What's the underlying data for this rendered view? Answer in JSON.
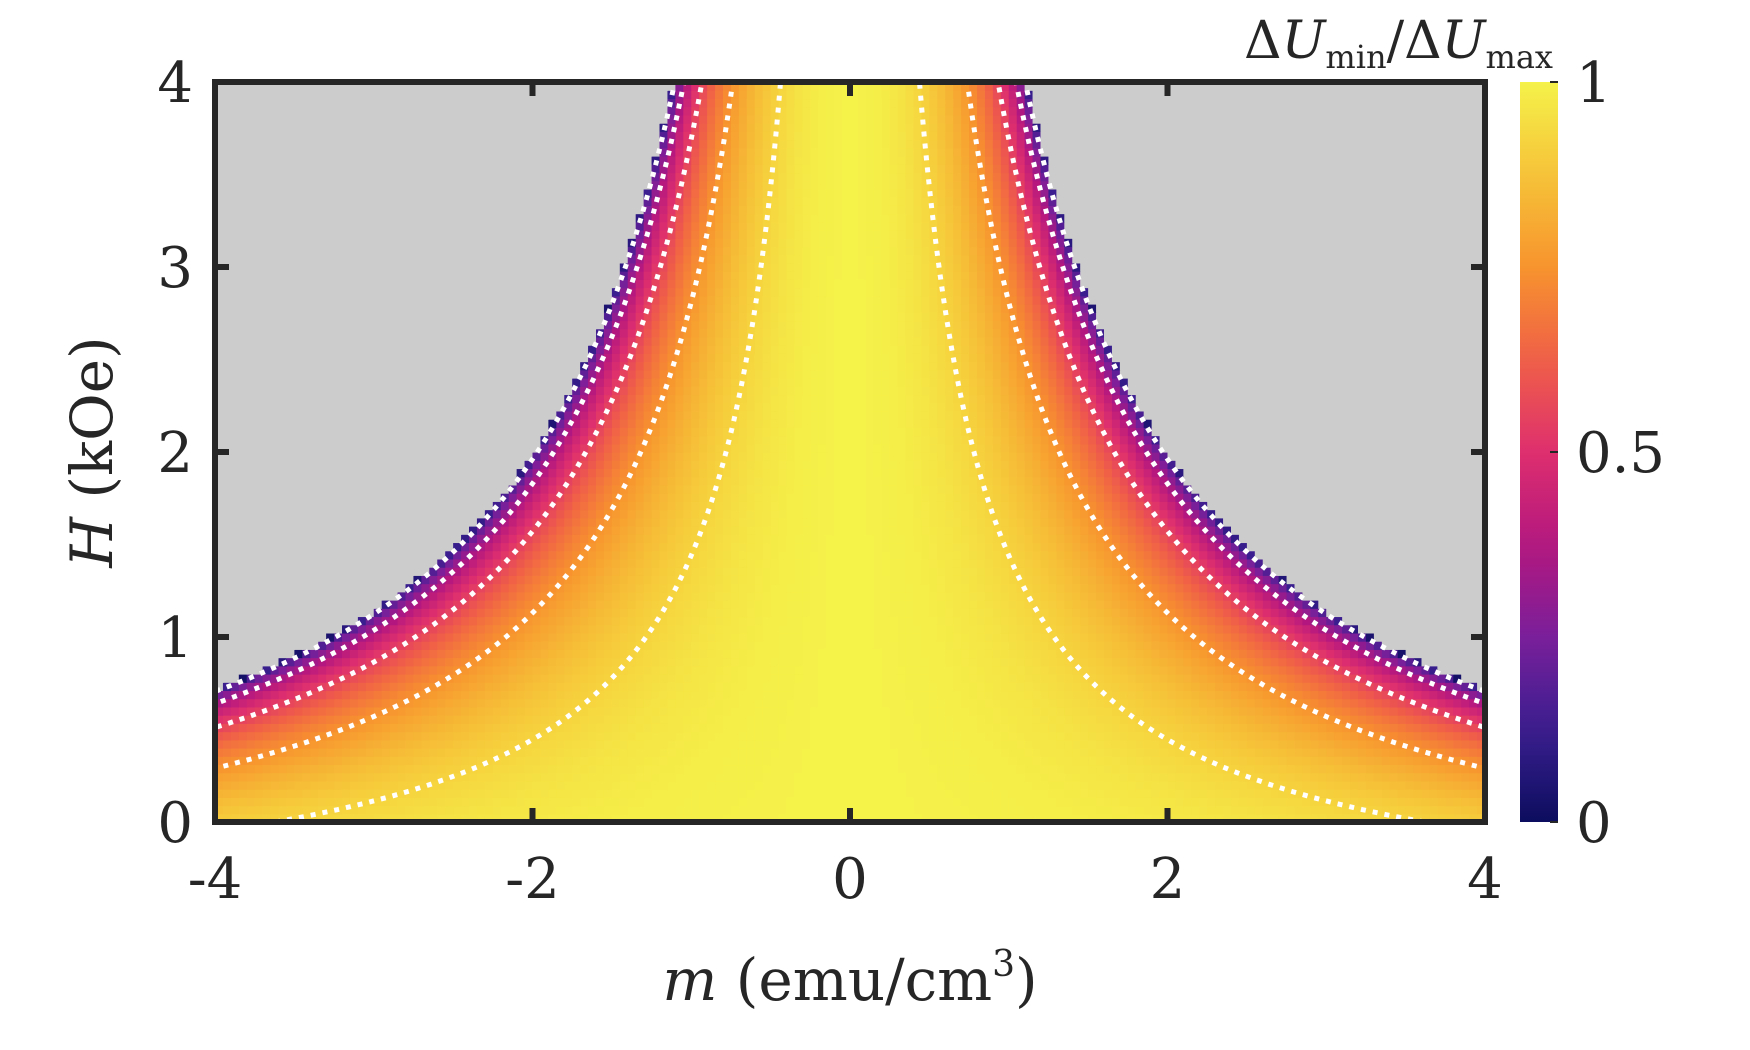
{
  "chart_data": {
    "type": "heatmap",
    "title": "",
    "xlabel": {
      "var": "m",
      "unit_prefix": " (emu/cm",
      "unit_exp": "3",
      "unit_suffix": ")"
    },
    "ylabel": {
      "var": "H",
      "unit": " (kOe)"
    },
    "xlim": [
      -4,
      4
    ],
    "ylim": [
      0,
      4
    ],
    "x_ticks": [
      "-4",
      "-2",
      "0",
      "2",
      "4"
    ],
    "y_ticks": [
      "0",
      "1",
      "2",
      "3",
      "4"
    ],
    "colorbar": {
      "label": {
        "delta": "Δ",
        "U": "U",
        "min_sub": "min",
        "slash": "/",
        "max_sub": "max"
      },
      "ticks": [
        "0",
        "0.5",
        "1"
      ],
      "range": [
        0,
        1
      ],
      "colormap": "plasma",
      "colors": [
        "#0c0d5e",
        "#3a1e8f",
        "#7a1f9a",
        "#b4177f",
        "#de2f6e",
        "#f06047",
        "#f7942e",
        "#f6c338",
        "#f5f24a"
      ]
    },
    "masked_region_color": "#cccccc",
    "boundary_H_at_edge_kOe": 0.72,
    "contour_levels": [
      0.15,
      0.35,
      0.55,
      0.75,
      0.92
    ],
    "contour_color": "#ffffff",
    "contour_style": "dotted"
  }
}
